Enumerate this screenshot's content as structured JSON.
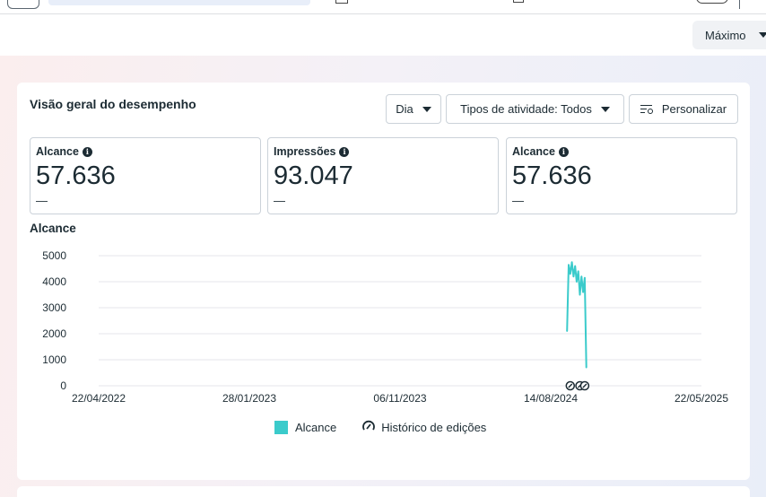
{
  "top_bar": {
    "toggle_icon": "toggle-icon"
  },
  "header": {
    "range_select": "Máximo"
  },
  "card": {
    "title": "Visão geral do desempenho",
    "buttons": {
      "period": "Dia",
      "activity_types": "Tipos de atividade: Todos",
      "customize": "Personalizar"
    },
    "metrics": [
      {
        "label": "Alcance",
        "value": "57.636",
        "change": "—"
      },
      {
        "label": "Impressões",
        "value": "93.047",
        "change": "—"
      },
      {
        "label": "Alcance",
        "value": "57.636",
        "change": "—"
      }
    ],
    "chart_title": "Alcance"
  },
  "legend": {
    "series": "Alcance",
    "history": "Histórico de edições"
  },
  "colors": {
    "series": "#3bcbcb",
    "grid": "#e4e6eb"
  },
  "chart_data": {
    "type": "line",
    "title": "Alcance",
    "xlabel": "",
    "ylabel": "",
    "x_ticks": [
      "22/04/2022",
      "28/01/2023",
      "06/11/2023",
      "14/08/2024",
      "22/05/2025"
    ],
    "y_ticks": [
      0,
      1000,
      2000,
      3000,
      4000,
      5000
    ],
    "ylim": [
      0,
      5000
    ],
    "xlim": [
      "2022-04-22",
      "2025-05-22"
    ],
    "grid": true,
    "legend_position": "bottom",
    "series": [
      {
        "name": "Alcance",
        "x": [
          "2024-09-13",
          "2024-09-16",
          "2024-09-19",
          "2024-09-22",
          "2024-09-25",
          "2024-09-28",
          "2024-10-01",
          "2024-10-04",
          "2024-10-07",
          "2024-10-10",
          "2024-10-13",
          "2024-10-16",
          "2024-10-19"
        ],
        "values": [
          2100,
          4650,
          4300,
          4750,
          4200,
          4600,
          4000,
          4400,
          3500,
          4200,
          3600,
          4150,
          700
        ]
      }
    ],
    "edit_history_markers": [
      "2024-09-19",
      "2024-10-07",
      "2024-10-16"
    ]
  }
}
